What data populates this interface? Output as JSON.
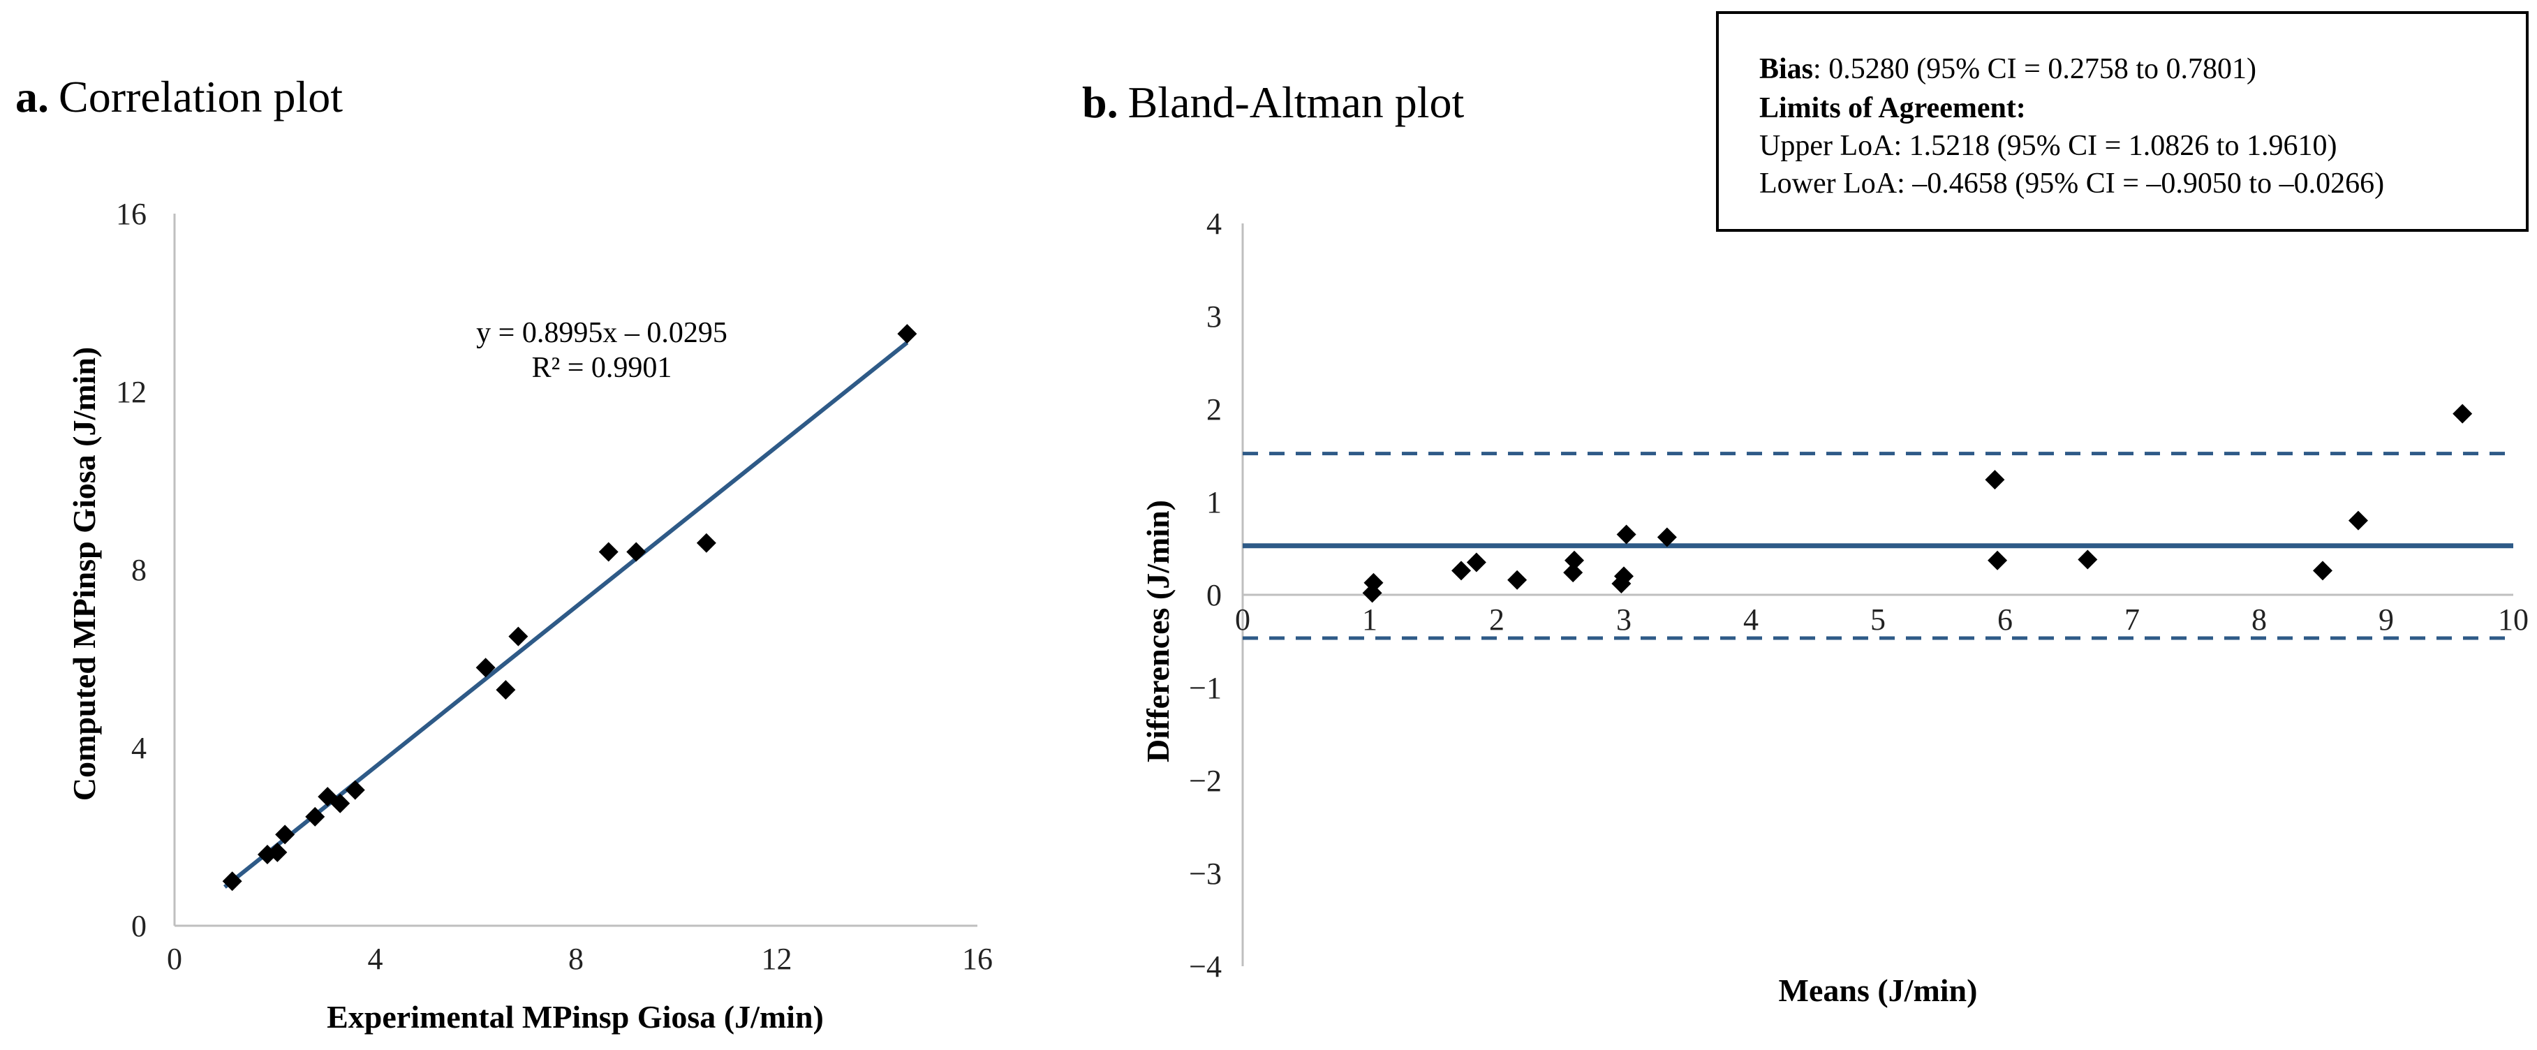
{
  "chart_data": [
    {
      "type": "scatter",
      "panel_letter": "a.",
      "title": "Correlation plot",
      "xlabel": "Experimental  MPinsp Giosa (J/min)",
      "ylabel": "Computed  MPinsp Giosa (J/min)",
      "xlim": [
        0,
        16
      ],
      "ylim": [
        0,
        16
      ],
      "xticks": [
        "0",
        "4",
        "8",
        "12",
        "16"
      ],
      "yticks": [
        "0",
        "4",
        "8",
        "12",
        "16"
      ],
      "grid": false,
      "points": [
        {
          "x": 1.15,
          "y": 1.0
        },
        {
          "x": 1.85,
          "y": 1.6
        },
        {
          "x": 2.05,
          "y": 1.65
        },
        {
          "x": 2.2,
          "y": 2.05
        },
        {
          "x": 2.8,
          "y": 2.45
        },
        {
          "x": 3.05,
          "y": 2.9
        },
        {
          "x": 3.3,
          "y": 2.75
        },
        {
          "x": 3.6,
          "y": 3.05
        },
        {
          "x": 6.2,
          "y": 5.8
        },
        {
          "x": 6.6,
          "y": 5.3
        },
        {
          "x": 6.85,
          "y": 6.5
        },
        {
          "x": 8.65,
          "y": 8.4
        },
        {
          "x": 9.2,
          "y": 8.4
        },
        {
          "x": 10.6,
          "y": 8.6
        },
        {
          "x": 14.6,
          "y": 13.3
        }
      ],
      "trendline": {
        "slope": 0.8995,
        "intercept": -0.0295,
        "x_range": [
          1.0,
          14.6
        ]
      },
      "equation_text": "y = 0.8995x – 0.0295",
      "r2_text": "R² = 0.9901",
      "colors": {
        "line": "#2e5a87",
        "marker": "#000000",
        "axis": "#bfbfbf"
      }
    },
    {
      "type": "scatter",
      "panel_letter": "b.",
      "title": "Bland-Altman plot",
      "xlabel": "Means (J/min)",
      "ylabel": "Differences (J/min)",
      "xlim": [
        0,
        10
      ],
      "ylim": [
        -4,
        4
      ],
      "xticks": [
        "0",
        "1",
        "2",
        "3",
        "4",
        "5",
        "6",
        "7",
        "8",
        "9",
        "10"
      ],
      "yticks": [
        "−4",
        "−3",
        "−2",
        "−1",
        "0",
        "1",
        "2",
        "3",
        "4"
      ],
      "grid": false,
      "points": [
        {
          "x": 1.02,
          "y": 0.02
        },
        {
          "x": 1.03,
          "y": 0.13
        },
        {
          "x": 1.72,
          "y": 0.26
        },
        {
          "x": 1.84,
          "y": 0.35
        },
        {
          "x": 2.16,
          "y": 0.16
        },
        {
          "x": 2.6,
          "y": 0.24
        },
        {
          "x": 2.61,
          "y": 0.37
        },
        {
          "x": 2.98,
          "y": 0.12
        },
        {
          "x": 3.0,
          "y": 0.2
        },
        {
          "x": 3.02,
          "y": 0.65
        },
        {
          "x": 3.34,
          "y": 0.62
        },
        {
          "x": 5.92,
          "y": 1.24
        },
        {
          "x": 5.94,
          "y": 0.37
        },
        {
          "x": 6.65,
          "y": 0.38
        },
        {
          "x": 8.5,
          "y": 0.26
        },
        {
          "x": 8.78,
          "y": 0.8
        },
        {
          "x": 9.6,
          "y": 1.95
        }
      ],
      "bias": 0.528,
      "upper_loa": 1.5218,
      "lower_loa": -0.4658,
      "stats_box": {
        "bias_label": "Bias",
        "bias_text": ":  0.5280 (95% CI =  0.2758  to  0.7801)",
        "loa_heading": "Limits of Agreement:",
        "upper_text": "Upper LoA:   1.5218  (95% CI = 1.0826 to 1.9610)",
        "lower_text": "Lower LoA: –0.4658 (95% CI = –0.9050 to –0.0266)"
      },
      "colors": {
        "bias_line": "#2e5a87",
        "loa_line": "#2e5a87",
        "marker": "#000000",
        "axis": "#bfbfbf"
      }
    }
  ]
}
